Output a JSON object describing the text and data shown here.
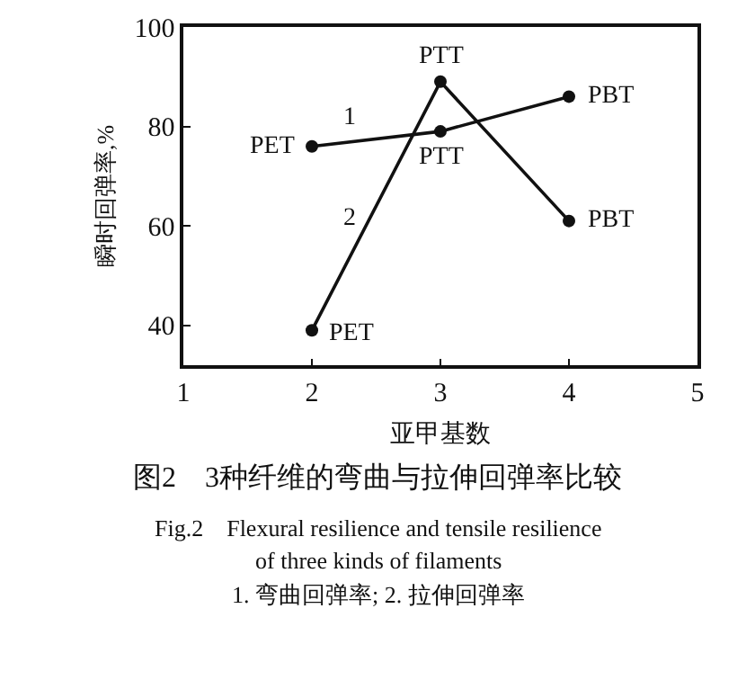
{
  "chart_data": {
    "type": "line",
    "title": "图2　3种纤维的弯曲与拉伸回弹率比较",
    "xlabel": "亚甲基数",
    "ylabel": "瞬时回弹率,%",
    "x": [
      2,
      3,
      4
    ],
    "series": [
      {
        "color": "#111111",
        "values": [
          76,
          79,
          86
        ]
      },
      {
        "color": "#111111",
        "values": [
          39,
          89,
          61
        ]
      }
    ],
    "xlim": [
      1,
      5
    ],
    "xticks": [
      1,
      2,
      3,
      4,
      5
    ],
    "ylim": [
      32,
      100
    ],
    "yticks": [
      40,
      60,
      80,
      100
    ],
    "marker": "circle",
    "line_style": "solid",
    "annotations": [
      {
        "text": "PET",
        "x": 2,
        "y": 76
      },
      {
        "text": "PTT",
        "x": 3,
        "y": 79
      },
      {
        "text": "PBT",
        "x": 4,
        "y": 86
      },
      {
        "text": "PET",
        "x": 2,
        "y": 39
      },
      {
        "text": "PTT",
        "x": 3,
        "y": 89
      },
      {
        "text": "PBT",
        "x": 4,
        "y": 61
      },
      {
        "text": "1",
        "x": 2.3,
        "y": 76.9
      },
      {
        "text": "2",
        "x": 2.45,
        "y": 61.5
      },
      "Fig.2　Flexural resilience and tensile resilience",
      "of three kinds of filaments",
      "1. 弯曲回弹率; 2. 拉伸回弹率"
    ]
  }
}
